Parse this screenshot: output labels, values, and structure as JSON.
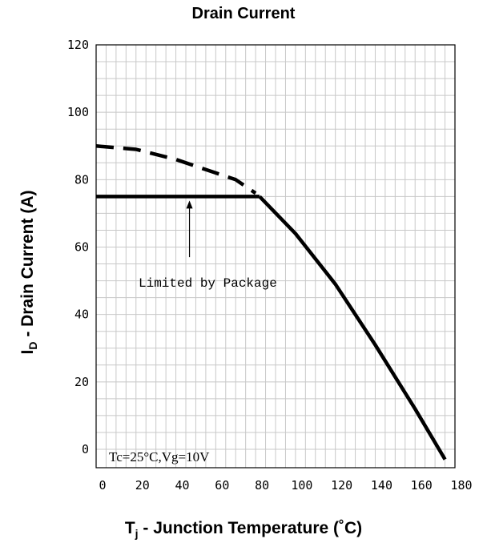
{
  "chart_data": {
    "type": "line",
    "title": "Drain Current",
    "ylabel": {
      "main": "I",
      "sub": "D",
      "rest": " - Drain Current (A)"
    },
    "xlabel": {
      "main": "T",
      "sub": "j",
      "rest": " - Junction Temperature (˚C)"
    },
    "xlim": [
      0,
      180
    ],
    "ylim": [
      0,
      120
    ],
    "x_ticks": [
      "0",
      "20",
      "40",
      "60",
      "80",
      "100",
      "120",
      "140",
      "160",
      "180"
    ],
    "y_ticks": [
      "0",
      "20",
      "40",
      "60",
      "80",
      "100",
      "120"
    ],
    "grid": true,
    "series": [
      {
        "style": "dashed",
        "x": [
          0,
          20,
          40,
          60,
          70,
          75,
          80
        ],
        "y": [
          90,
          89,
          86,
          82,
          80,
          78,
          76
        ]
      },
      {
        "style": "solid",
        "x": [
          0,
          82
        ],
        "y": [
          75,
          75
        ]
      },
      {
        "style": "solid",
        "x": [
          82,
          100,
          120,
          140,
          160,
          175
        ],
        "y": [
          75,
          64,
          49,
          31,
          12,
          -3
        ]
      }
    ],
    "annotations": {
      "package_limit": "Limited by Package",
      "conditions": "Tc=25°C,Vg=10V"
    }
  }
}
